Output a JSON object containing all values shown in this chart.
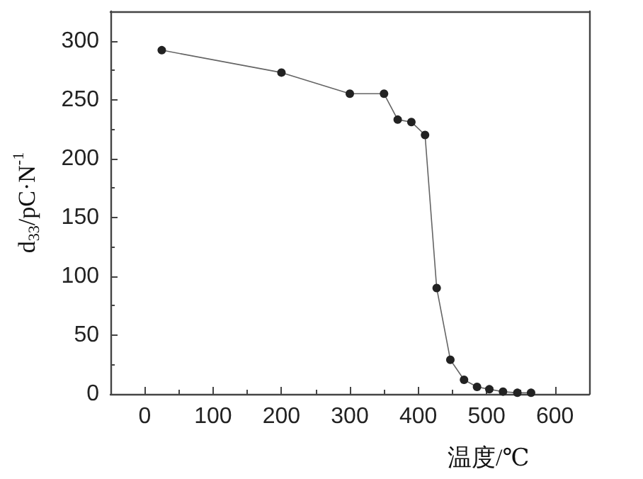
{
  "chart_data": {
    "type": "line",
    "xlabel": "温度/℃",
    "ylabel": "d$_{33}$/pC·N$^{-1}$",
    "x": [
      25,
      200,
      300,
      350,
      370,
      390,
      410,
      427,
      447,
      467,
      486,
      504,
      524,
      545,
      565
    ],
    "series": [
      {
        "color": "#222222",
        "values": [
          292,
          273,
          255,
          255,
          233,
          231,
          220,
          90,
          29,
          12,
          6,
          4,
          2,
          1,
          1
        ]
      }
    ],
    "xlim": [
      -50,
      650
    ],
    "xticks": [
      0,
      100,
      200,
      300,
      400,
      500,
      600
    ],
    "ylim": [
      0,
      325
    ],
    "yticks": [
      0,
      50,
      100,
      150,
      200,
      250,
      300
    ],
    "marker": "circle",
    "line_style": "solid",
    "grid": false
  }
}
